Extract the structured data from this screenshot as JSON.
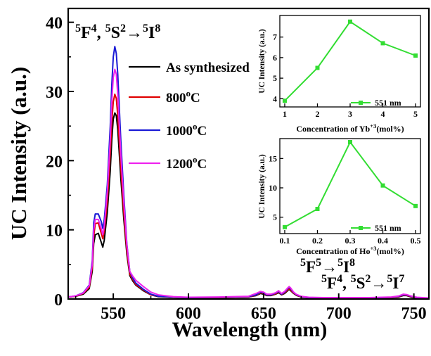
{
  "chart_data": [
    {
      "type": "line",
      "xlabel": "Wavelength (nm)",
      "ylabel": "UC Intensity (a.u.)",
      "xlim": [
        520,
        760
      ],
      "ylim": [
        0,
        42
      ],
      "xticks": [
        550,
        600,
        650,
        700,
        750
      ],
      "yticks": [
        0,
        10,
        20,
        30,
        40
      ],
      "legend_position": "center",
      "annotations": [
        {
          "id": "f4s2-i8",
          "parts": [
            "5",
            "F",
            "4",
            ", ",
            "5",
            "S",
            "2",
            "→",
            "5",
            "I",
            "8"
          ]
        },
        {
          "id": "f5-i8",
          "parts": [
            "5",
            "F",
            "5",
            "→",
            "5",
            "I",
            "8"
          ]
        },
        {
          "id": "f4s2-i7",
          "parts": [
            "5",
            "F",
            "4",
            ", ",
            "5",
            "S",
            "2",
            "→",
            "5",
            "I",
            "7"
          ]
        }
      ],
      "x": [
        520,
        525,
        530,
        534,
        536,
        537,
        538,
        540,
        542,
        543,
        544,
        546,
        548,
        549,
        550,
        551,
        552,
        553,
        555,
        557,
        559,
        561,
        563,
        565,
        570,
        575,
        580,
        590,
        600,
        620,
        640,
        645,
        648,
        650,
        652,
        655,
        658,
        660,
        662,
        664,
        666,
        667,
        668,
        669,
        670,
        672,
        675,
        680,
        690,
        700,
        720,
        735,
        740,
        743,
        745,
        748,
        752,
        760
      ],
      "series": [
        {
          "name": "As synthesized",
          "color": "#000000",
          "values": [
            0.3,
            0.4,
            0.7,
            1.5,
            4.0,
            8.0,
            9.3,
            9.5,
            8.2,
            7.5,
            8.5,
            12.5,
            18.5,
            23.0,
            26.0,
            26.9,
            26.5,
            24.5,
            17.5,
            11.5,
            6.5,
            3.4,
            2.6,
            2.0,
            1.2,
            0.6,
            0.35,
            0.25,
            0.2,
            0.2,
            0.3,
            0.5,
            0.8,
            0.7,
            0.5,
            0.5,
            0.7,
            0.9,
            0.6,
            0.8,
            1.2,
            1.4,
            1.2,
            1.0,
            0.8,
            0.5,
            0.3,
            0.2,
            0.15,
            0.15,
            0.15,
            0.2,
            0.3,
            0.5,
            0.5,
            0.3,
            0.15,
            0.1
          ]
        },
        {
          "name": "800°C",
          "color": "#e00000",
          "values": [
            0.3,
            0.4,
            0.8,
            1.7,
            4.5,
            9.0,
            10.9,
            11.0,
            9.5,
            8.7,
            9.8,
            14.0,
            21.0,
            25.5,
            28.5,
            29.6,
            29.0,
            26.5,
            19.0,
            12.5,
            7.0,
            3.6,
            2.8,
            2.1,
            1.3,
            0.6,
            0.4,
            0.25,
            0.2,
            0.2,
            0.3,
            0.55,
            0.9,
            0.8,
            0.55,
            0.55,
            0.75,
            1.0,
            0.65,
            0.9,
            1.3,
            1.5,
            1.3,
            1.05,
            0.85,
            0.55,
            0.3,
            0.2,
            0.15,
            0.15,
            0.15,
            0.2,
            0.35,
            0.55,
            0.55,
            0.35,
            0.15,
            0.1
          ]
        },
        {
          "name": "1000°C",
          "color": "#1a1ad6",
          "values": [
            0.3,
            0.45,
            0.9,
            2.0,
            5.5,
            11.0,
            12.3,
            12.3,
            11.2,
            10.2,
            11.5,
            16.5,
            25.0,
            31.0,
            35.0,
            36.5,
            35.5,
            32.5,
            23.0,
            15.0,
            8.0,
            4.0,
            3.0,
            2.3,
            1.4,
            0.7,
            0.4,
            0.3,
            0.2,
            0.25,
            0.35,
            0.6,
            1.0,
            0.9,
            0.6,
            0.6,
            0.85,
            1.1,
            0.7,
            1.0,
            1.5,
            1.7,
            1.5,
            1.2,
            0.95,
            0.6,
            0.35,
            0.2,
            0.15,
            0.15,
            0.15,
            0.25,
            0.4,
            0.6,
            0.6,
            0.4,
            0.2,
            0.1
          ]
        },
        {
          "name": "1200°C",
          "color": "#ee22ee",
          "values": [
            0.3,
            0.45,
            0.85,
            1.9,
            5.0,
            10.0,
            11.5,
            11.5,
            10.2,
            9.3,
            10.5,
            15.5,
            23.0,
            28.5,
            32.0,
            33.2,
            32.5,
            29.5,
            21.0,
            14.0,
            7.8,
            4.0,
            3.3,
            2.7,
            1.8,
            1.0,
            0.6,
            0.35,
            0.25,
            0.3,
            0.4,
            0.8,
            1.1,
            1.0,
            0.7,
            0.7,
            0.9,
            1.2,
            0.8,
            1.1,
            1.6,
            1.8,
            1.6,
            1.3,
            1.0,
            0.65,
            0.4,
            0.25,
            0.2,
            0.2,
            0.2,
            0.3,
            0.45,
            0.7,
            0.65,
            0.45,
            0.25,
            0.15
          ]
        }
      ]
    },
    {
      "type": "line",
      "xlabel": "Concentration of Yb",
      "xlabel_sup": "+3",
      "xlabel_tail": "(mol%)",
      "ylabel": "UC Intensity (a.u.)",
      "xlim": [
        0.85,
        5.15
      ],
      "ylim": [
        3.6,
        8.05
      ],
      "xticks": [
        "1",
        "2",
        "3",
        "4",
        "5"
      ],
      "yticks": [
        "4",
        "5",
        "6",
        "7"
      ],
      "legend_position": "bottom-right",
      "series": [
        {
          "name": "551 nm",
          "color": "#33dd33",
          "x": [
            1,
            2,
            3,
            4,
            5
          ],
          "values": [
            3.9,
            5.5,
            7.75,
            6.7,
            6.1
          ]
        }
      ]
    },
    {
      "type": "line",
      "xlabel": "Concentration of Ho",
      "xlabel_sup": "+3",
      "xlabel_tail": "(mol%)",
      "ylabel": "UC Intensity (a.u.)",
      "xlim": [
        0.085,
        0.515
      ],
      "ylim": [
        2.2,
        18.4
      ],
      "xticks": [
        "0.1",
        "0.2",
        "0.3",
        "0.4",
        "0.5"
      ],
      "yticks": [
        "5",
        "10",
        "15"
      ],
      "legend_position": "bottom-right",
      "series": [
        {
          "name": "551 nm",
          "color": "#33dd33",
          "x": [
            0.1,
            0.2,
            0.3,
            0.4,
            0.5
          ],
          "values": [
            3.3,
            6.4,
            17.8,
            10.4,
            6.9
          ]
        }
      ]
    }
  ]
}
